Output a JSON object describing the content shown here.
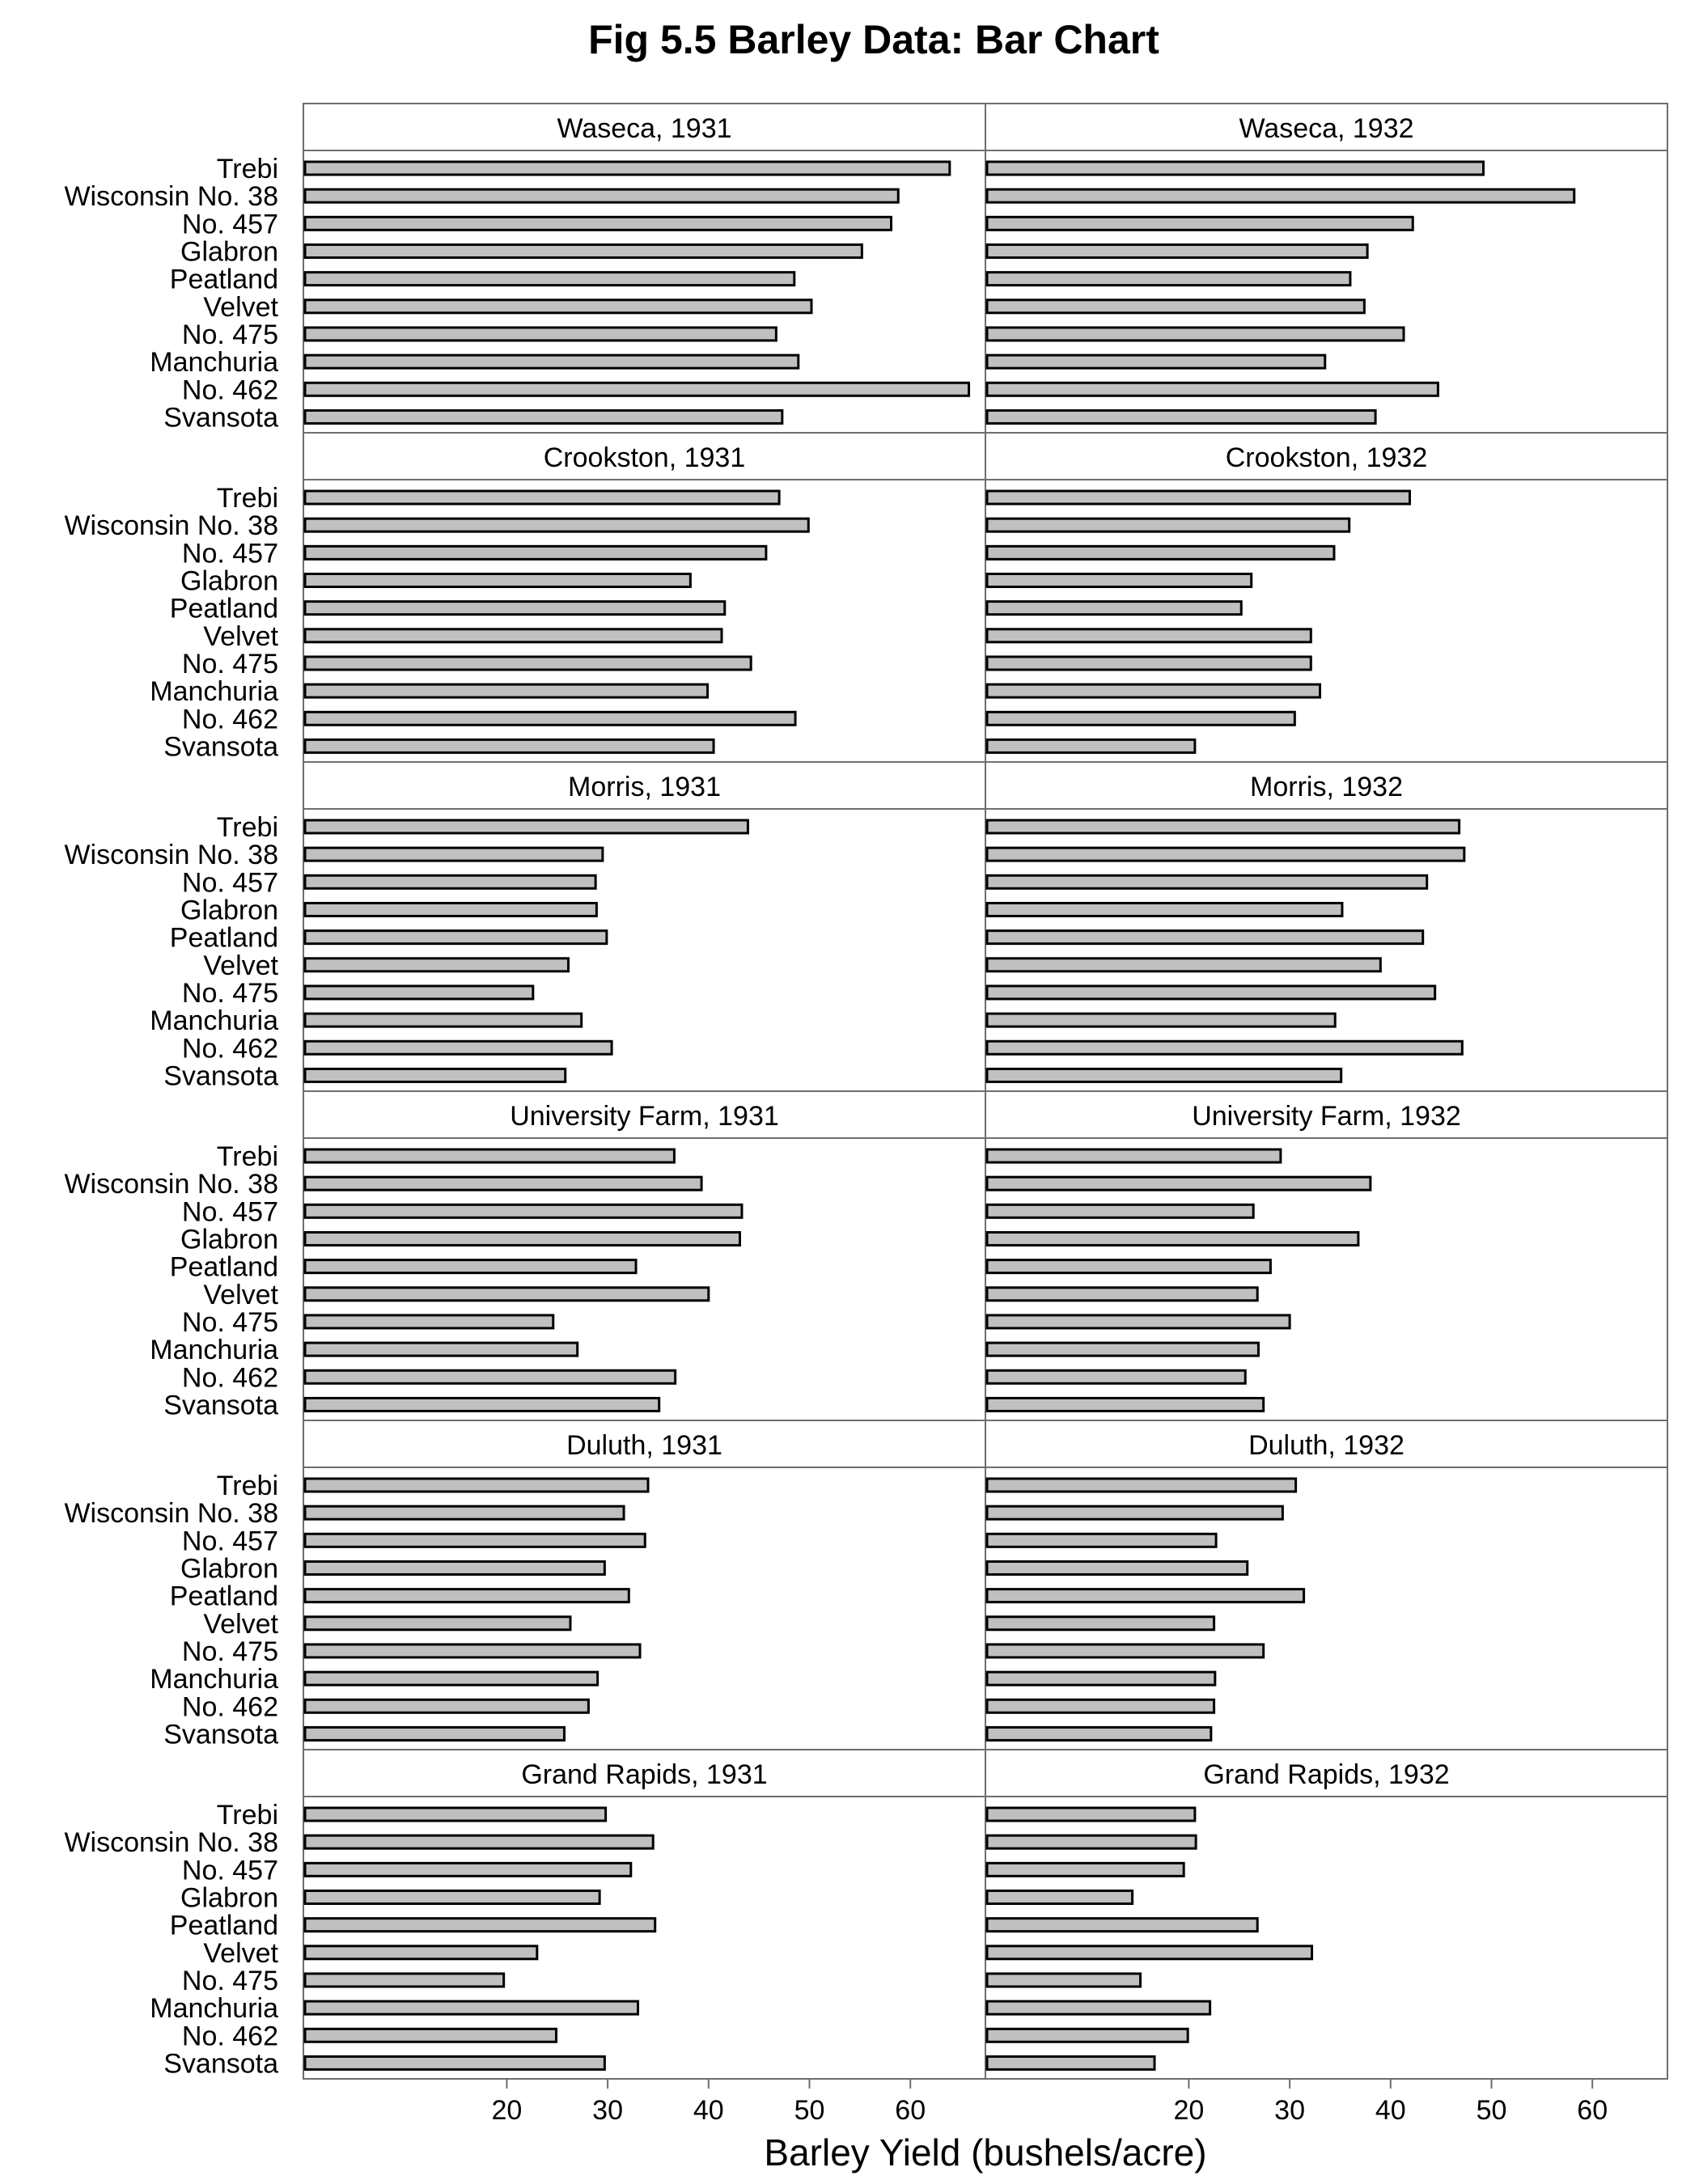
{
  "chart_data": {
    "type": "bar",
    "orientation": "horizontal",
    "layout": "facets 2 columns x 6 rows",
    "title": "Fig 5.5 Barley Data: Bar Chart",
    "xlabel": "Barley Yield (bushels/acre)",
    "ylabel": "",
    "xlim": [
      0,
      67
    ],
    "xticks": [
      20,
      30,
      40,
      50,
      60
    ],
    "bar_color": "#c0c0c0",
    "bar_edge_color": "#000000",
    "categories": [
      "Trebi",
      "Wisconsin No. 38",
      "No. 457",
      "Glabron",
      "Peatland",
      "Velvet",
      "No. 475",
      "Manchuria",
      "No. 462",
      "Svansota"
    ],
    "panels": [
      {
        "label": "Waseca, 1931",
        "values": [
          63.9,
          58.8,
          58.1,
          55.2,
          48.5,
          50.2,
          46.7,
          48.9,
          65.8,
          47.3
        ]
      },
      {
        "label": "Waseca, 1932",
        "values": [
          49.2,
          58.2,
          42.2,
          37.7,
          36.0,
          37.4,
          41.3,
          33.5,
          44.7,
          38.5
        ]
      },
      {
        "label": "Crookston, 1931",
        "values": [
          47.0,
          49.9,
          45.7,
          38.2,
          41.6,
          41.3,
          44.2,
          39.9,
          48.6,
          40.5
        ]
      },
      {
        "label": "Crookston, 1932",
        "values": [
          41.9,
          35.9,
          34.4,
          26.2,
          25.2,
          32.1,
          32.1,
          33.0,
          30.5,
          20.6
        ]
      },
      {
        "label": "Morris, 1931",
        "values": [
          43.9,
          29.5,
          28.8,
          28.9,
          29.9,
          26.1,
          22.6,
          27.4,
          30.4,
          25.8
        ]
      },
      {
        "label": "Morris, 1932",
        "values": [
          46.8,
          47.3,
          43.6,
          35.2,
          43.2,
          39.0,
          44.4,
          34.5,
          47.1,
          35.1
        ]
      },
      {
        "label": "University Farm, 1931",
        "values": [
          36.6,
          39.3,
          43.3,
          43.1,
          32.8,
          40.0,
          24.6,
          27.0,
          36.7,
          35.1
        ]
      },
      {
        "label": "University Farm, 1932",
        "values": [
          29.1,
          38.0,
          26.4,
          36.8,
          28.1,
          26.8,
          30.0,
          26.9,
          25.6,
          27.4
        ]
      },
      {
        "label": "Duluth, 1931",
        "values": [
          34.0,
          31.6,
          33.7,
          29.7,
          32.1,
          26.3,
          33.2,
          29.0,
          28.1,
          25.7
        ]
      },
      {
        "label": "Duluth, 1932",
        "values": [
          30.6,
          29.3,
          22.7,
          25.8,
          31.4,
          22.5,
          27.4,
          22.6,
          22.5,
          22.2
        ]
      },
      {
        "label": "Grand Rapids, 1931",
        "values": [
          29.8,
          34.5,
          32.3,
          29.2,
          34.7,
          23.0,
          19.7,
          33.0,
          24.9,
          29.7
        ]
      },
      {
        "label": "Grand Rapids, 1932",
        "values": [
          20.6,
          20.7,
          19.5,
          14.4,
          26.8,
          32.2,
          15.2,
          22.1,
          19.9,
          16.6
        ]
      }
    ]
  }
}
